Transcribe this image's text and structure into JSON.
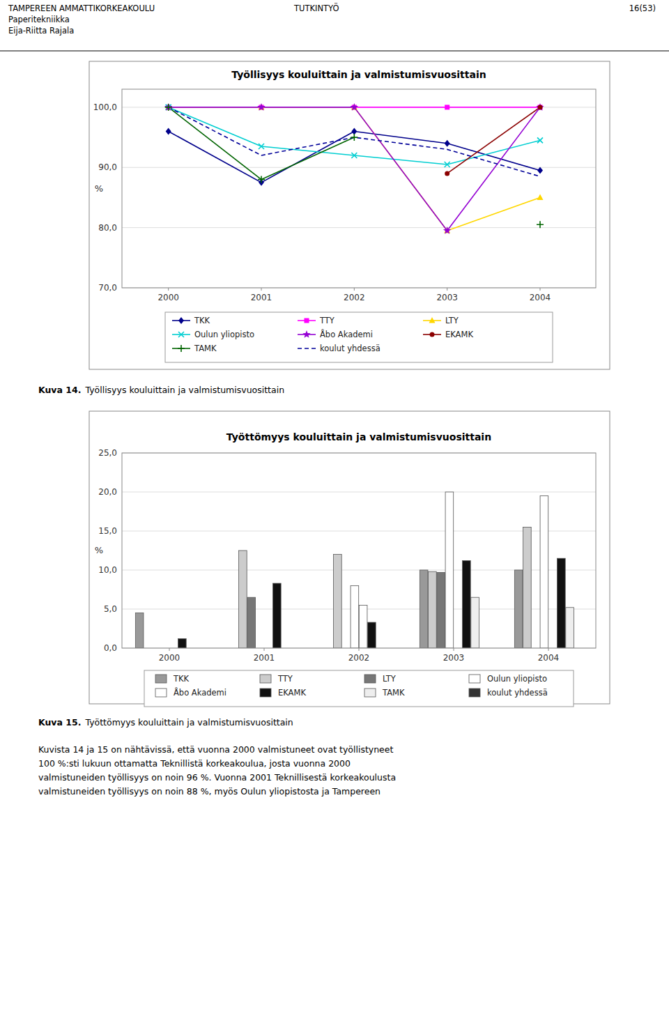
{
  "page": {
    "header_left": [
      "TAMPEREEN AMMATTIKORKEAKOULU",
      "Paperitekniikka",
      "Eija-Riitta Rajala"
    ],
    "header_center": "TUTKINTYÖ",
    "header_right": "16(53)",
    "body": [
      "Kuvista 14 ja 15 on nähtävissä, että vuonna 2000 valmistuneet ovat työllistyneet",
      "100 %:sti lukuun ottamatta Teknillistä korkeakoulua, josta vuonna 2000",
      "valmistuneiden työllisyys on noin 96 %. Vuonna 2001 Teknillisestä korkeakoulusta",
      "valmistuneiden työllisyys on noin 88 %, myös Oulun yliopistosta ja Tampereen"
    ]
  },
  "chart_data": [
    {
      "type": "line",
      "title": "Työllisyys kouluittain ja valmistumisvuosittain",
      "caption_label": "Kuva 14.",
      "caption": "Työllisyys kouluittain ja valmistumisvuosittain",
      "ylabel": "%",
      "x": [
        2000,
        2001,
        2002,
        2003,
        2004
      ],
      "xlim": [
        1999.5,
        2004.6
      ],
      "xticks": [
        2000,
        2001,
        2002,
        2003,
        2004
      ],
      "ylim": [
        70,
        103
      ],
      "yticks": [
        {
          "value": 70,
          "label": "70,0"
        },
        {
          "value": 80,
          "label": "80,0"
        },
        {
          "value": 90,
          "label": "90,0"
        },
        {
          "value": 100,
          "label": "100,0"
        }
      ],
      "grid": true,
      "legend": "bottom",
      "series": [
        {
          "name": "TKK",
          "color": "#00008B",
          "marker": "diamond",
          "line_style": "solid",
          "values": [
            96.0,
            87.5,
            96.0,
            94.0,
            89.5
          ]
        },
        {
          "name": "TTY",
          "color": "#FF00FF",
          "marker": "square",
          "line_style": "solid",
          "values": [
            100.0,
            100.0,
            100.0,
            100.0,
            100.0
          ]
        },
        {
          "name": "LTY",
          "color": "#FFD700",
          "marker": "triangle",
          "line_style": "solid",
          "values": [
            100.0,
            100.0,
            100.0,
            79.5,
            85.0
          ]
        },
        {
          "name": "Oulun yliopisto",
          "color": "#00CED1",
          "marker": "x",
          "line_style": "solid",
          "values": [
            100.0,
            93.5,
            92.0,
            90.5,
            94.5
          ]
        },
        {
          "name": "Åbo Akademi",
          "color": "#9400D3",
          "marker": "star",
          "line_style": "solid",
          "values": [
            100.0,
            100.0,
            100.0,
            79.5,
            100.0
          ]
        },
        {
          "name": "EKAMK",
          "color": "#8B0000",
          "marker": "circle",
          "line_style": "solid",
          "values": [
            null,
            null,
            null,
            89.0,
            100.0
          ]
        },
        {
          "name": "TAMK",
          "color": "#006400",
          "marker": "plus",
          "line_style": "solid",
          "values": [
            100.0,
            88.0,
            95.0,
            null,
            80.5
          ]
        },
        {
          "name": "koulut yhdessä",
          "color": "#000099",
          "marker": "none",
          "line_style": "dashed",
          "values": [
            100.0,
            92.0,
            95.0,
            93.0,
            88.5
          ]
        }
      ]
    },
    {
      "type": "bar",
      "title": "Työttömyys kouluittain ja valmistumisvuosittain",
      "caption_label": "Kuva 15.",
      "caption": "Työttömyys kouluittain ja valmistumisvuosittain",
      "ylabel": "%",
      "categories": [
        "2000",
        "2001",
        "2002",
        "2003",
        "2004"
      ],
      "ylim": [
        0,
        25
      ],
      "yticks": [
        {
          "value": 0,
          "label": "0,0"
        },
        {
          "value": 5,
          "label": "5,0"
        },
        {
          "value": 10,
          "label": "10,0"
        },
        {
          "value": 15,
          "label": "15,0"
        },
        {
          "value": 20,
          "label": "20,0"
        },
        {
          "value": 25,
          "label": "25,0"
        }
      ],
      "grid": true,
      "legend": "bottom",
      "series": [
        {
          "name": "TKK",
          "color": "#999999",
          "values": [
            4.5,
            0.0,
            0.0,
            10.0,
            10.0
          ]
        },
        {
          "name": "TTY",
          "color": "#cccccc",
          "values": [
            0.0,
            12.5,
            12.0,
            9.8,
            15.5
          ]
        },
        {
          "name": "LTY",
          "color": "#777777",
          "values": [
            0.0,
            6.5,
            0.0,
            9.7,
            0.0
          ]
        },
        {
          "name": "Oulun yliopisto",
          "color": "#ffffff",
          "values": [
            0.0,
            0.0,
            8.0,
            20.0,
            19.5
          ]
        },
        {
          "name": "Åbo Akademi",
          "color": "#ffffff",
          "values": [
            0.0,
            0.0,
            5.5,
            0.0,
            0.0
          ]
        },
        {
          "name": "EKAMK",
          "color": "#111111",
          "values": [
            1.2,
            8.3,
            3.3,
            11.2,
            11.5
          ]
        },
        {
          "name": "TAMK",
          "color": "#eeeeee",
          "values": [
            0.0,
            0.0,
            0.0,
            6.5,
            5.2
          ]
        },
        {
          "name": "koulut yhdessä",
          "color": "#333333",
          "values": [
            0.0,
            0.0,
            0.0,
            0.0,
            0.0
          ]
        }
      ]
    }
  ]
}
